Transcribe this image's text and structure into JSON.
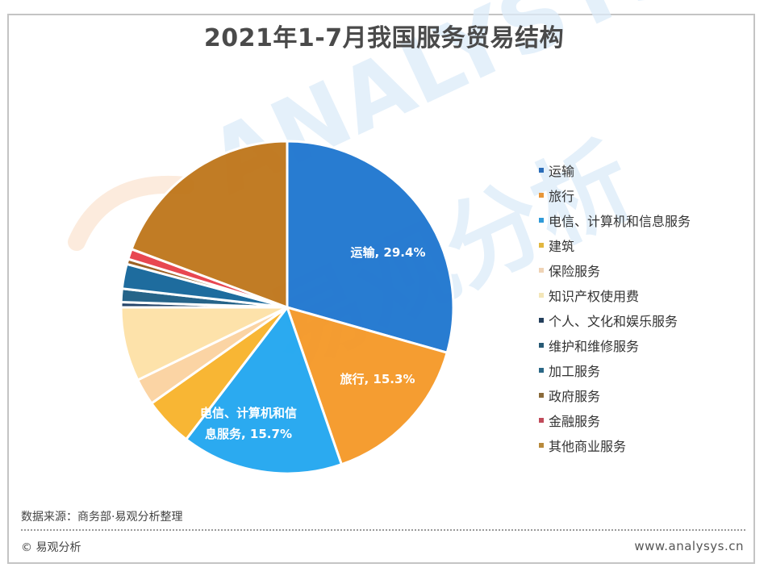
{
  "title": "2021年1-7月我国服务贸易结构",
  "chart_data": {
    "type": "pie",
    "title": "2021年1-7月我国服务贸易结构",
    "start_angle": "12 o'clock, clockwise",
    "legend_position": "right",
    "slices": [
      {
        "label": "运输",
        "value": 29.4,
        "color": "#2278d0",
        "data_label": "运输, 29.4%"
      },
      {
        "label": "旅行",
        "value": 15.3,
        "color": "#f59a2b",
        "data_label": "旅行, 15.3%"
      },
      {
        "label": "电信、计算机和信息服务",
        "value": 15.7,
        "color": "#25a8f0",
        "data_label_lines": [
          "电信、计算机和信",
          "息服务, 15.7%"
        ]
      },
      {
        "label": "建筑",
        "value": 4.8,
        "color": "#f8b42e"
      },
      {
        "label": "保险服务",
        "value": 2.6,
        "color": "#fbd3a2"
      },
      {
        "label": "知识产权使用费",
        "value": 7.2,
        "color": "#fde2a8"
      },
      {
        "label": "个人、文化和娱乐服务",
        "value": 0.5,
        "color": "#1f3f66"
      },
      {
        "label": "维护和维修服务",
        "value": 1.3,
        "color": "#1f5f86"
      },
      {
        "label": "加工服务",
        "value": 2.4,
        "color": "#17689b"
      },
      {
        "label": "政府服务",
        "value": 0.5,
        "color": "#9a5c1e"
      },
      {
        "label": "金融服务",
        "value": 1.0,
        "color": "#e8424c"
      },
      {
        "label": "其他商业服务",
        "value": 19.3,
        "color": "#c0781e"
      }
    ]
  },
  "legend": {
    "items": [
      {
        "label": "运输",
        "color": "#2a6cb8"
      },
      {
        "label": "旅行",
        "color": "#e8973a"
      },
      {
        "label": "电信、计算机和信息服务",
        "color": "#2f9ad8"
      },
      {
        "label": "建筑",
        "color": "#e2b740"
      },
      {
        "label": "保险服务",
        "color": "#efd3b5"
      },
      {
        "label": "知识产权使用费",
        "color": "#f3e6b8"
      },
      {
        "label": "个人、文化和娱乐服务",
        "color": "#243f5c"
      },
      {
        "label": "维护和维修服务",
        "color": "#285a75"
      },
      {
        "label": "加工服务",
        "color": "#2a6786"
      },
      {
        "label": "政府服务",
        "color": "#8a6a3a"
      },
      {
        "label": "金融服务",
        "color": "#c04a5a"
      },
      {
        "label": "其他商业服务",
        "color": "#b88a3c"
      }
    ]
  },
  "footer": {
    "source": "数据来源：商务部·易观分析整理",
    "copyright": "© 易观分析",
    "website": "www.analysys.cn"
  },
  "watermark": {
    "text_en": "ANALYSYS",
    "text_cn": "易观分析"
  }
}
